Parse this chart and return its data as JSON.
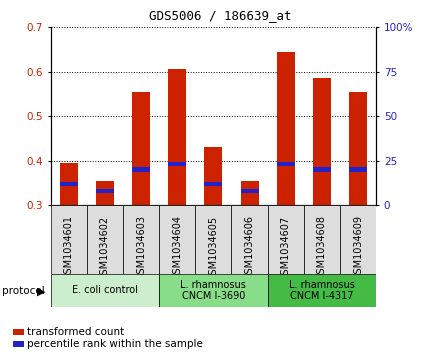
{
  "title": "GDS5006 / 186639_at",
  "samples": [
    "GSM1034601",
    "GSM1034602",
    "GSM1034603",
    "GSM1034604",
    "GSM1034605",
    "GSM1034606",
    "GSM1034607",
    "GSM1034608",
    "GSM1034609"
  ],
  "transformed_count": [
    0.395,
    0.355,
    0.555,
    0.605,
    0.43,
    0.355,
    0.645,
    0.585,
    0.555
  ],
  "percentile_rank": [
    12,
    8,
    20,
    23,
    12,
    8,
    23,
    20,
    20
  ],
  "baseline": 0.3,
  "ylim_left": [
    0.3,
    0.7
  ],
  "ylim_right": [
    0,
    100
  ],
  "yticks_left": [
    0.3,
    0.4,
    0.5,
    0.6,
    0.7
  ],
  "yticks_right": [
    0,
    25,
    50,
    75,
    100
  ],
  "bar_color": "#CC2200",
  "percentile_color": "#2222CC",
  "bar_width": 0.5,
  "protocol_colors": [
    "#CCEECC",
    "#88DD88",
    "#44BB44"
  ],
  "protocol_labels": [
    "E. coli control",
    "L. rhamnosus\nCNCM I-3690",
    "L. rhamnosus\nCNCM I-4317"
  ],
  "protocol_ranges": [
    [
      0,
      3
    ],
    [
      3,
      6
    ],
    [
      6,
      9
    ]
  ],
  "legend_items": [
    {
      "label": "transformed count",
      "color": "#CC2200"
    },
    {
      "label": "percentile rank within the sample",
      "color": "#2222CC"
    }
  ],
  "protocol_label": "protocol",
  "tick_label_color_left": "#CC2200",
  "tick_label_color_right": "#2222CC",
  "label_box_color": "#DDDDDD",
  "title_fontsize": 9,
  "tick_fontsize": 7.5,
  "legend_fontsize": 7.5,
  "sample_fontsize": 7
}
